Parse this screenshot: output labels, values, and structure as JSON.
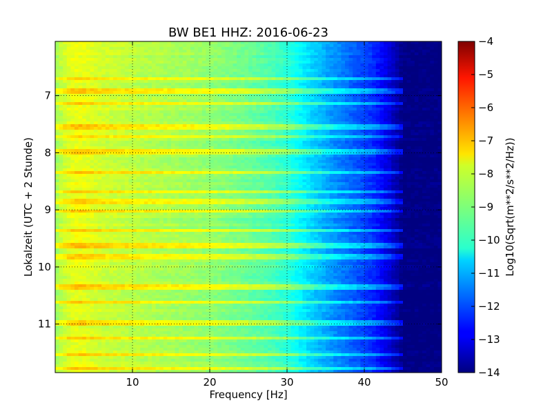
{
  "chart_data": {
    "type": "heatmap",
    "title": "BW BE1 HHZ: 2016-06-23",
    "xlabel": "Frequency [Hz]",
    "ylabel": "Lokalzeit (UTC + 2 Stunde)",
    "xlim": [
      0,
      50
    ],
    "ylim": [
      11.85,
      6.05
    ],
    "y_inverted": true,
    "xticks": [
      10,
      20,
      30,
      40,
      50
    ],
    "yticks": [
      7,
      8,
      9,
      10,
      11
    ],
    "grid": true,
    "colormap": "jet",
    "colorbar": {
      "label": "Log10(Sqrt(m**2/s**2/Hz))",
      "range": [
        -14,
        -4
      ],
      "ticks": [
        -14,
        -13,
        -12,
        -11,
        -10,
        -9,
        -8,
        -7,
        -6,
        -5,
        -4
      ]
    },
    "spectrum_profile": {
      "frequency_hz": [
        0,
        1,
        2,
        3,
        4,
        6,
        10,
        15,
        20,
        25,
        28,
        30,
        33,
        36,
        39,
        41,
        43,
        44,
        45,
        50
      ],
      "log10_amplitude": [
        -8.7,
        -8.3,
        -8.0,
        -7.9,
        -8.0,
        -8.2,
        -8.4,
        -8.6,
        -8.8,
        -9.2,
        -9.5,
        -9.8,
        -10.6,
        -11.3,
        -11.9,
        -12.3,
        -13.0,
        -13.5,
        -14.0,
        -14.0
      ]
    },
    "bright_rows_local_time": [
      6.72,
      6.92,
      7.13,
      7.55,
      7.7,
      7.98,
      8.35,
      8.68,
      8.85,
      9.03,
      9.35,
      9.63,
      9.82,
      10.35,
      10.62,
      10.98,
      11.25,
      11.55,
      11.78
    ],
    "row_boost_log10": 1.2
  }
}
